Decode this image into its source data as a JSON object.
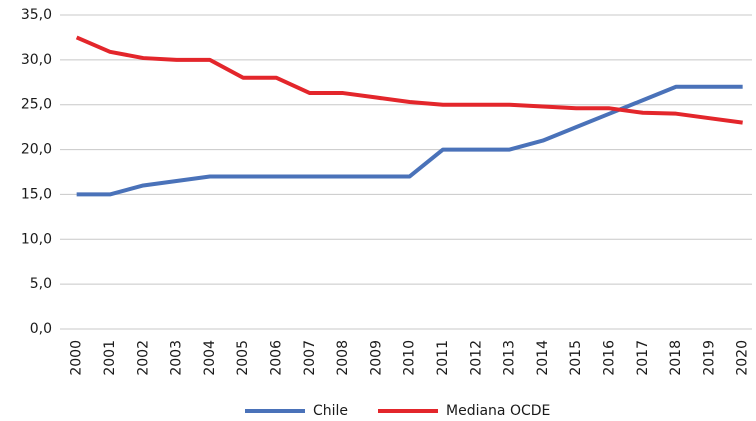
{
  "chart_data": {
    "type": "line",
    "categories": [
      "2000",
      "2001",
      "2002",
      "2003",
      "2004",
      "2005",
      "2006",
      "2007",
      "2008",
      "2009",
      "2010",
      "2011",
      "2012",
      "2013",
      "2014",
      "2015",
      "2016",
      "2017",
      "2018",
      "2019",
      "2020"
    ],
    "series": [
      {
        "name": "Chile",
        "color": "#4a72b9",
        "values": [
          15,
          15,
          16,
          16.5,
          17,
          17,
          17,
          17,
          17,
          17,
          17,
          20,
          20,
          20,
          21,
          22.5,
          24,
          25.5,
          27,
          27,
          27
        ]
      },
      {
        "name": "Mediana OCDE",
        "color": "#e3262b",
        "values": [
          32.5,
          30.9,
          30.2,
          30,
          30,
          28,
          28,
          26.3,
          26.3,
          25.8,
          25.3,
          25,
          25,
          25,
          24.8,
          24.6,
          24.6,
          24.1,
          24,
          23.5,
          23
        ]
      }
    ],
    "ylim": [
      0,
      35
    ],
    "yticks": [
      {
        "value": 0,
        "label": "0,0"
      },
      {
        "value": 5,
        "label": "5,0"
      },
      {
        "value": 10,
        "label": "10,0"
      },
      {
        "value": 15,
        "label": "15,0"
      },
      {
        "value": 20,
        "label": "20,0"
      },
      {
        "value": 25,
        "label": "25,0"
      },
      {
        "value": 30,
        "label": "30,0"
      },
      {
        "value": 35,
        "label": "35,0"
      }
    ],
    "grid": true,
    "legend": "bottom"
  }
}
